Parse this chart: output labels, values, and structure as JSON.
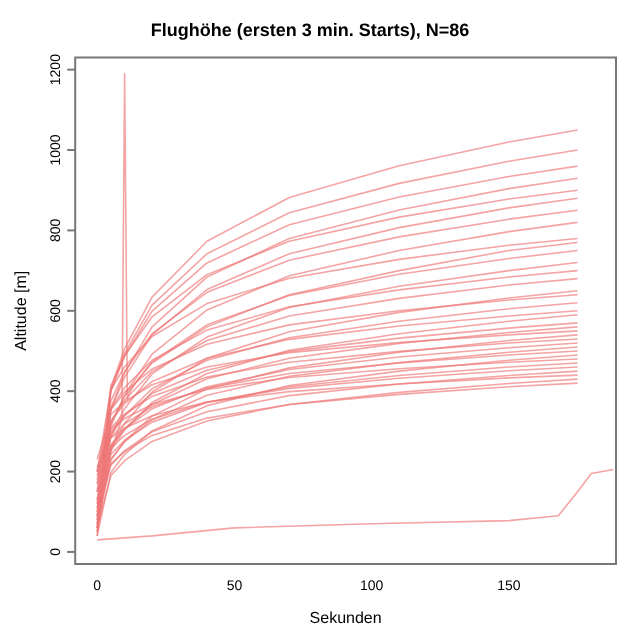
{
  "chart_data": {
    "type": "line",
    "title": "Flughöhe (ersten 3 min. Starts), N=86",
    "xlabel": "Sekunden",
    "ylabel": "Altitude [m]",
    "x": [
      0,
      5,
      10,
      20,
      40,
      70,
      110,
      150,
      175
    ],
    "color": "#ee7777",
    "grid": false,
    "legend": false,
    "marker": "none",
    "xlim": [
      -8,
      189
    ],
    "xticks": [
      0,
      50,
      100,
      150
    ],
    "ylim": [
      -30,
      1230
    ],
    "yticks": [
      0,
      200,
      400,
      600,
      800,
      1000,
      1200
    ],
    "series": [
      {
        "values": [
          60,
          407,
          506,
          634,
          773,
          882,
          961,
          1020,
          1050
        ]
      },
      {
        "values": [
          80,
          402,
          494,
          614,
          742,
          844,
          917,
          972,
          1000
        ]
      },
      {
        "values": [
          100,
          401,
          487,
          599,
          719,
          814,
          883,
          934,
          960
        ]
      },
      {
        "values": [
          50,
          358,
          446,
          560,
          684,
          780,
          851,
          904,
          930
        ]
      },
      {
        "values": [
          150,
          413,
          488,
          585,
          690,
          773,
          833,
          878,
          900
        ]
      },
      {
        "values": [
          70,
          354,
          435,
          540,
          653,
          742,
          807,
          856,
          880
        ]
      },
      {
        "values": [
          120,
          376,
          449,
          543,
          646,
          726,
          784,
          828,
          850
        ]
      },
      {
        "values": [
          40,
          313,
          391,
          492,
          602,
          687,
          750,
          797,
          820
        ]
      },
      {
        "values": [
          200,
          403,
          461,
          536,
          618,
          681,
          728,
          763,
          780
        ]
      },
      {
        "values": [
          90,
          321,
          387,
          473,
          565,
          638,
          691,
          730,
          750
        ]
      },
      {
        "values": [
          60,
          291,
          357,
          443,
          535,
          608,
          661,
          700,
          720
        ]
      },
      {
        "values": [
          170,
          356,
          409,
          477,
          552,
          610,
          652,
          684,
          700
        ]
      },
      {
        "values": [
          130,
          323,
          378,
          449,
          526,
          587,
          631,
          664,
          680
        ]
      },
      {
        "values": [
          50,
          260,
          320,
          398,
          482,
          548,
          596,
          632,
          650
        ]
      },
      {
        "values": [
          200,
          354,
          398,
          455,
          517,
          565,
          600,
          627,
          640
        ]
      },
      {
        "values": [
          110,
          289,
          340,
          406,
          477,
          533,
          574,
          605,
          620
        ]
      },
      {
        "values": [
          180,
          327,
          369,
          424,
          482,
          529,
          562,
          587,
          600
        ]
      },
      {
        "values": [
          70,
          252,
          304,
          372,
          444,
          502,
          543,
          574,
          590
        ]
      },
      {
        "values": [
          150,
          297,
          339,
          394,
          452,
          499,
          532,
          557,
          570
        ]
      },
      {
        "values": [
          100,
          261,
          307,
          367,
          431,
          482,
          519,
          546,
          560
        ]
      },
      {
        "values": [
          230,
          342,
          374,
          416,
          460,
          496,
          521,
          540,
          550
        ]
      },
      {
        "values": [
          60,
          228,
          276,
          338,
          406,
          458,
          497,
          526,
          540
        ]
      },
      {
        "values": [
          190,
          309,
          343,
          387,
          435,
          472,
          499,
          520,
          530
        ]
      },
      {
        "values": [
          130,
          267,
          306,
          356,
          411,
          454,
          485,
          508,
          520
        ]
      },
      {
        "values": [
          80,
          231,
          274,
          329,
          390,
          437,
          471,
          497,
          510
        ]
      },
      {
        "values": [
          170,
          286,
          319,
          361,
          408,
          444,
          470,
          490,
          500
        ]
      },
      {
        "values": [
          40,
          198,
          243,
          301,
          364,
          414,
          450,
          477,
          490
        ]
      },
      {
        "values": [
          210,
          305,
          332,
          367,
          404,
          434,
          456,
          472,
          480
        ]
      },
      {
        "values": [
          120,
          243,
          278,
          323,
          372,
          411,
          439,
          460,
          470
        ]
      },
      {
        "values": [
          150,
          259,
          290,
          330,
          373,
          407,
          432,
          451,
          460
        ]
      },
      {
        "values": [
          90,
          216,
          252,
          299,
          349,
          389,
          418,
          439,
          450
        ]
      },
      {
        "values": [
          200,
          284,
          308,
          339,
          373,
          399,
          418,
          433,
          440
        ]
      },
      {
        "values": [
          60,
          190,
          227,
          275,
          326,
          367,
          397,
          419,
          430
        ]
      },
      {
        "values": [
          110,
          219,
          250,
          290,
          333,
          367,
          392,
          411,
          420
        ]
      },
      {
        "x": [
          0,
          20,
          50,
          100,
          150,
          168,
          175,
          180,
          188
        ],
        "values": [
          30,
          40,
          60,
          70,
          78,
          90,
          150,
          195,
          205
        ]
      },
      {
        "x": [
          0,
          5,
          9,
          10,
          11,
          12,
          15,
          20,
          40,
          70,
          110,
          150,
          175
        ],
        "values": [
          90,
          250,
          330,
          1190,
          380,
          400,
          430,
          470,
          560,
          640,
          700,
          750,
          770
        ]
      }
    ]
  }
}
